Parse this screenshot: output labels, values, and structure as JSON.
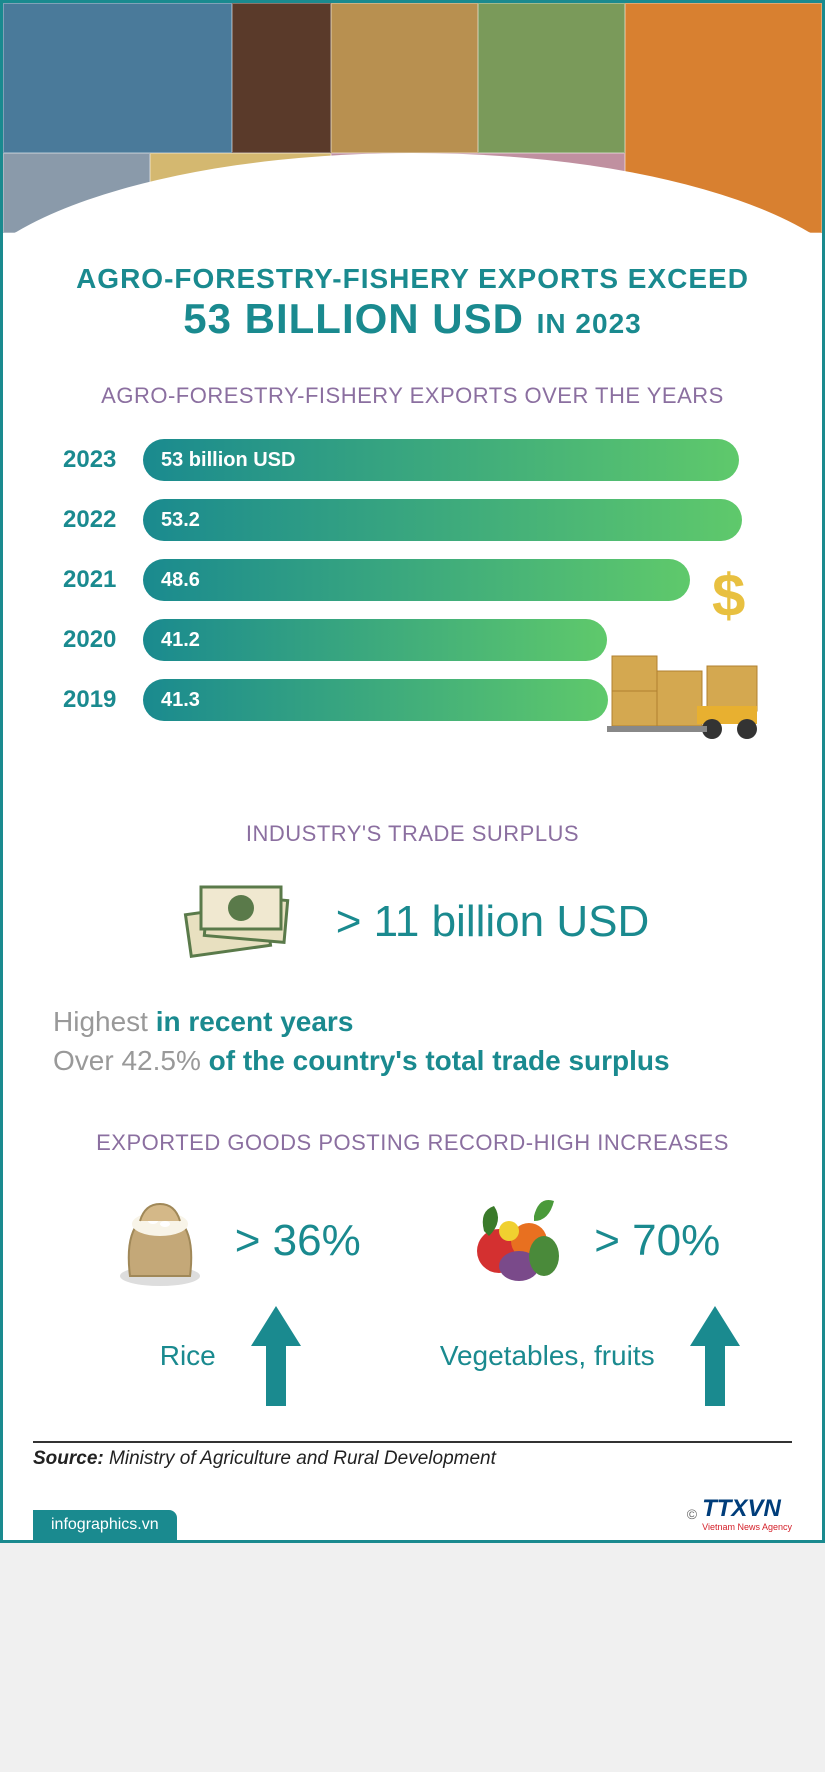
{
  "title": {
    "line1": "AGRO-FORESTRY-FISHERY EXPORTS EXCEED",
    "value": "53 BILLION USD",
    "year_suffix": "IN 2023"
  },
  "chart": {
    "heading": "AGRO-FORESTRY-FISHERY EXPORTS OVER THE YEARS",
    "max_value": 55,
    "gradient_start": "#1a8a8f",
    "gradient_end": "#5fc96b",
    "bars": [
      {
        "year": "2023",
        "label": "53 billion USD",
        "value": 53.0
      },
      {
        "year": "2022",
        "label": "53.2",
        "value": 53.2
      },
      {
        "year": "2021",
        "label": "48.6",
        "value": 48.6
      },
      {
        "year": "2020",
        "label": "41.2",
        "value": 41.2
      },
      {
        "year": "2019",
        "label": "41.3",
        "value": 41.3
      }
    ]
  },
  "surplus": {
    "heading": "INDUSTRY'S TRADE SURPLUS",
    "value": ">  11 billion USD",
    "line1_light": "Highest",
    "line1_strong": "in recent years",
    "line2_light": "Over 42.5%",
    "line2_strong": "of the country's total trade surplus"
  },
  "goods": {
    "heading": "EXPORTED GOODS POSTING RECORD-HIGH INCREASES",
    "items": [
      {
        "label": "Rice",
        "pct": "> 36%"
      },
      {
        "label": "Vegetables, fruits",
        "pct": "> 70%"
      }
    ]
  },
  "footer": {
    "source_label": "Source:",
    "source_value": "Ministry of Agriculture and Rural Development",
    "site": "infographics.vn",
    "copyright": "©",
    "logo": "TTXVN",
    "logo_sub": "Vietnam News Agency"
  },
  "colors": {
    "teal": "#1a8a8f",
    "purple": "#8b6fa0",
    "arrow": "#1a8a8f"
  }
}
